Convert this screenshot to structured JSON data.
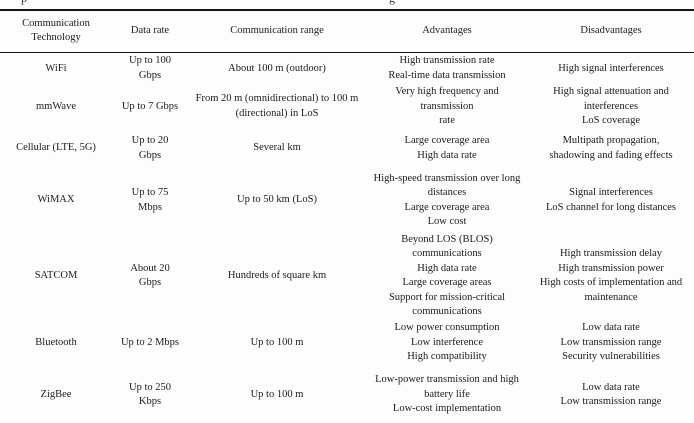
{
  "page": {
    "background_color": "#fdfdfd",
    "text_color": "#1c1c1c",
    "rule_color": "#111111"
  },
  "caption_fragments": {
    "left": "p",
    "right": "g"
  },
  "table": {
    "headers": {
      "technology": "Communication\nTechnology",
      "data_rate": "Data rate",
      "range": "Communication range",
      "advantages": "Advantages",
      "disadvantages": "Disadvantages"
    },
    "rows": [
      {
        "technology": "WiFi",
        "data_rate": "Up to 100\nGbps",
        "range": "About 100 m (outdoor)",
        "advantages": "High transmission rate\nReal-time data transmission",
        "disadvantages": "High signal interferences"
      },
      {
        "technology": "mmWave",
        "data_rate": "Up to 7 Gbps",
        "range": "From 20 m (omnidirectional) to 100 m\n(directional) in LoS",
        "advantages": "Very high frequency and transmission\nrate",
        "disadvantages": "High signal attenuation and\ninterferences\nLoS coverage"
      },
      {
        "technology": "Cellular (LTE, 5G)",
        "data_rate": "Up to 20\nGbps",
        "range": "Several km",
        "advantages": "Large coverage area\nHigh data rate",
        "disadvantages": "Multipath propagation,\nshadowing and fading effects"
      },
      {
        "technology": "WiMAX",
        "data_rate": "Up to 75\nMbps",
        "range": "Up to 50 km (LoS)",
        "advantages": "High-speed transmission over long\ndistances\nLarge coverage area\nLow cost",
        "disadvantages": "Signal interferences\nLoS channel for long distances"
      },
      {
        "technology": "SATCOM",
        "data_rate": "About 20\nGbps",
        "range": "Hundreds of square km",
        "advantages": "Beyond LOS (BLOS) communications\nHigh data rate\nLarge coverage areas\nSupport for mission-critical\ncommunications",
        "disadvantages": "High transmission delay\nHigh transmission power\nHigh costs of implementation and\nmaintenance"
      },
      {
        "technology": "Bluetooth",
        "data_rate": "Up to 2 Mbps",
        "range": "Up to 100 m",
        "advantages": "Low power consumption\nLow interference\nHigh compatibility",
        "disadvantages": "Low data rate\nLow transmission range\nSecurity vulnerabilities"
      },
      {
        "technology": "ZigBee",
        "data_rate": "Up to 250\nKbps",
        "range": "Up to 100 m",
        "advantages": "Low-power transmission and high\nbattery life\nLow-cost implementation",
        "disadvantages": "Low data rate\nLow transmission range"
      }
    ]
  }
}
